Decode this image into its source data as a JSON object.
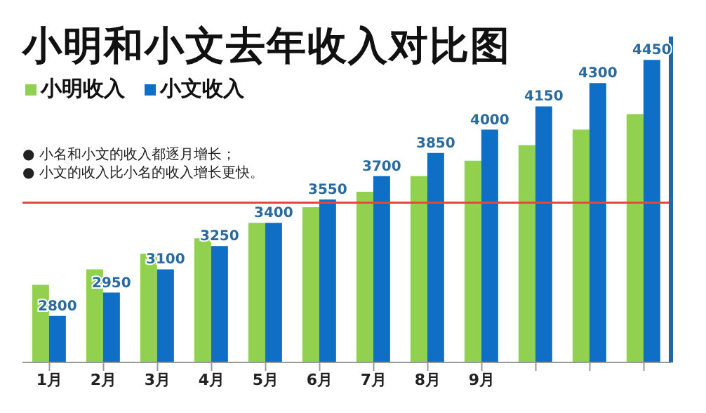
{
  "chart_data": {
    "type": "bar",
    "title": "小明和小文去年收入对比图",
    "categories": [
      "1月",
      "2月",
      "3月",
      "4月",
      "5月",
      "6月",
      "7月",
      "8月",
      "9月",
      null,
      null,
      null
    ],
    "series": [
      {
        "name": "小明收入",
        "color": "#92d050",
        "values": [
          3000,
          3100,
          3200,
          3300,
          3400,
          3500,
          3600,
          3700,
          3800,
          3900,
          4000,
          4100
        ]
      },
      {
        "name": "小文收入",
        "color": "#0f6fc6",
        "values": [
          2800,
          2950,
          3100,
          3250,
          3400,
          3550,
          3700,
          3850,
          4000,
          4150,
          4300,
          4450
        ],
        "value_labels": [
          "2800",
          "2950",
          "3100",
          "3250",
          "3400",
          "3550",
          "3700",
          "3850",
          "4000",
          "4150",
          "4300",
          "4450"
        ]
      }
    ],
    "ylim": [
      2500,
      4600
    ],
    "legend": "top left",
    "grid": false,
    "ref_lines": [
      {
        "axis": "y",
        "value": 3530,
        "color": "#e8463c"
      }
    ],
    "annotations": [
      "● 小名和小文的收入都逐月增长；",
      "● 小文的收入比小名的收入增长更快。"
    ]
  }
}
